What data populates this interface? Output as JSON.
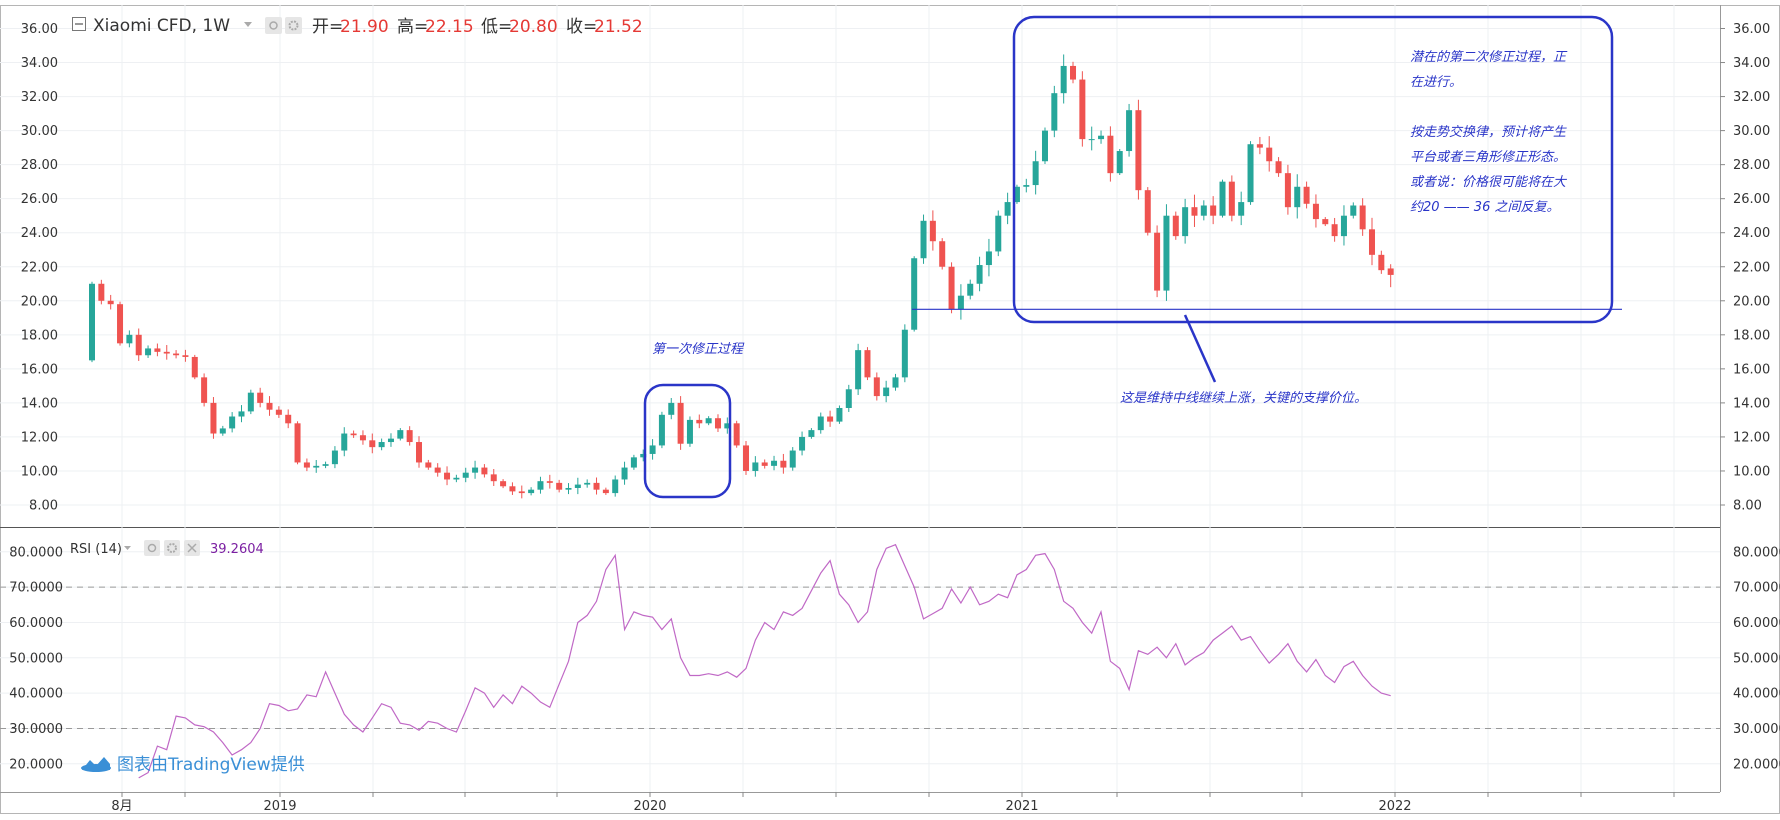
{
  "header": {
    "symbol": "Xiaomi CFD, 1W",
    "open_label": "开=",
    "open_value": "21.90",
    "high_label": "高=",
    "high_value": "22.15",
    "low_label": "低=",
    "low_value": "20.80",
    "close_label": "收=",
    "close_value": "21.52"
  },
  "rsi_header": {
    "label": "RSI (14)",
    "value": "39.2604"
  },
  "watermark": "图表由TradingView提供",
  "colors": {
    "up": "#26a69a",
    "down": "#ef5350",
    "rsi": "#c069c6",
    "annotation": "#2a35c8",
    "value_red": "#e53935",
    "rsi_value": "#7b1fa2"
  },
  "icons": [
    "collapse-icon",
    "eye-icon",
    "gear-icon",
    "close-icon",
    "tradingview-logo-icon"
  ],
  "annotations": {
    "first_correction": "第一次修正过程",
    "second_correction_1": "潜在的第二次修正过程，正",
    "second_correction_2": "在进行。",
    "second_correction_3": "按走势交换律，预计将产生",
    "second_correction_4": "平台或者三角形修正形态。",
    "second_correction_5": "或者说：价格很可能将在大",
    "second_correction_6": "约20 —— 36 之间反复。",
    "support_note": "这是维持中线继续上涨，关键的支撑价位。"
  },
  "chart_data": [
    {
      "type": "candlestick",
      "title": "Xiaomi CFD, 1W",
      "period": "1W",
      "y_ticks": [
        "8.00",
        "10.00",
        "12.00",
        "14.00",
        "16.00",
        "18.00",
        "20.00",
        "22.00",
        "24.00",
        "26.00",
        "28.00",
        "30.00",
        "32.00",
        "34.00",
        "36.00"
      ],
      "ylim": [
        7,
        37
      ],
      "x_ticks": [
        "8月",
        "2019",
        "2020",
        "2021",
        "2022"
      ],
      "last_ohlc": {
        "open": 21.9,
        "high": 22.15,
        "low": 20.8,
        "close": 21.52
      },
      "support_level": 19.5,
      "closes": [
        21.0,
        20.0,
        19.8,
        17.5,
        18.0,
        16.8,
        17.2,
        17.0,
        16.9,
        16.8,
        16.7,
        15.5,
        14.0,
        12.2,
        12.5,
        13.2,
        13.5,
        14.6,
        14.0,
        13.6,
        13.3,
        12.8,
        10.5,
        10.2,
        10.3,
        10.4,
        11.2,
        12.2,
        12.1,
        11.8,
        11.4,
        11.7,
        11.9,
        12.4,
        11.7,
        10.5,
        10.2,
        9.9,
        9.5,
        9.6,
        9.9,
        10.2,
        9.8,
        9.4,
        9.1,
        8.8,
        8.7,
        8.9,
        9.4,
        9.3,
        8.9,
        9.0,
        9.2,
        9.3,
        8.9,
        8.7,
        9.5,
        10.2,
        10.8,
        11.0,
        11.5,
        13.3,
        14.0,
        11.6,
        13.0,
        12.8,
        13.1,
        12.5,
        12.8,
        11.5,
        10.0,
        10.5,
        10.3,
        10.6,
        10.2,
        11.2,
        12.0,
        12.4,
        13.2,
        12.9,
        13.7,
        14.8,
        17.1,
        15.5,
        14.4,
        14.9,
        15.5,
        18.3,
        22.5,
        24.7,
        23.5,
        22.0,
        19.5,
        20.3,
        21.0,
        22.1,
        22.9,
        25.0,
        25.8,
        26.7,
        26.8,
        28.2,
        30.0,
        32.2,
        33.8,
        33.0,
        29.5,
        29.5,
        29.7,
        27.5,
        28.8,
        31.2,
        26.5,
        24.0,
        20.6,
        25.0,
        23.8,
        25.5,
        25.0,
        25.6,
        25.0,
        27.0,
        25.0,
        25.8,
        29.2,
        29.0,
        28.2,
        27.5,
        25.5,
        26.7,
        25.7,
        24.8,
        24.5,
        23.8,
        25.0,
        25.6,
        24.2,
        22.7,
        21.8,
        21.52
      ],
      "volumes": []
    },
    {
      "type": "line",
      "title": "RSI (14)",
      "y_ticks": [
        "20.0000",
        "30.0000",
        "40.0000",
        "50.0000",
        "60.0000",
        "70.0000",
        "80.0000"
      ],
      "ylim": [
        15,
        85
      ],
      "reference_lines": [
        30,
        70
      ],
      "series": [
        {
          "values": [
            16.0,
            17.5,
            25.0,
            24.0,
            33.5,
            33.0,
            31.0,
            30.5,
            29.0,
            26.0,
            22.5,
            24.0,
            26.0,
            30.0,
            37.0,
            36.5,
            35.0,
            35.5,
            39.5,
            39.0,
            46.0,
            40.0,
            34.0,
            31.0,
            29.0,
            33.0,
            37.0,
            36.0,
            31.5,
            31.0,
            29.5,
            32.0,
            31.5,
            30.0,
            29.0,
            35.0,
            41.5,
            40.0,
            36.0,
            39.5,
            37.0,
            42.0,
            40.0,
            37.5,
            36.0,
            42.5,
            49.0,
            60.0,
            62.0,
            66.0,
            75.0,
            79.0,
            58.0,
            63.0,
            62.0,
            61.5,
            58.0,
            61.0,
            50.0,
            45.0,
            45.0,
            45.5,
            45.0,
            46.0,
            44.5,
            47.0,
            55.0,
            60.0,
            58.0,
            63.0,
            62.0,
            64.0,
            69.0,
            74.0,
            77.5,
            68.0,
            65.0,
            60.0,
            63.0,
            75.0,
            81.0,
            82.0,
            76.0,
            70.0,
            61.0,
            62.5,
            64.0,
            69.5,
            65.5,
            70.0,
            65.0,
            66.0,
            68.0,
            67.0,
            73.5,
            75.0,
            79.0,
            79.5,
            75.0,
            66.0,
            64.0,
            60.0,
            57.0,
            63.0,
            49.0,
            47.0,
            41.0,
            52.0,
            51.0,
            53.0,
            50.0,
            54.0,
            48.0,
            50.0,
            51.5,
            55.0,
            57.0,
            59.0,
            55.0,
            56.0,
            52.0,
            48.5,
            51.0,
            54.0,
            49.0,
            46.0,
            49.5,
            45.0,
            43.0,
            47.5,
            49.0,
            45.0,
            42.0,
            40.0,
            39.26
          ]
        }
      ]
    }
  ]
}
